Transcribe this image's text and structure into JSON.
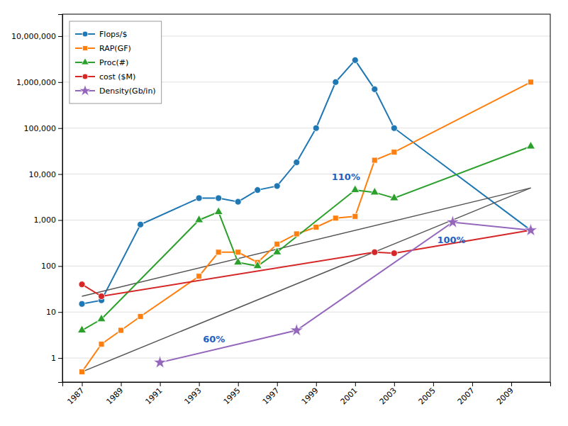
{
  "chart_data": {
    "type": "line",
    "log": "y",
    "grid": "y",
    "legend": "upper left",
    "xlim": [
      1986.0,
      2011.0
    ],
    "ylim": [
      0.3,
      30000000
    ],
    "xticks": [
      1987,
      1989,
      1991,
      1993,
      1995,
      1997,
      1999,
      2001,
      2003,
      2005,
      2007,
      2009
    ],
    "yticks": [
      1,
      10,
      100,
      {
        "value": 1000,
        "label": "1,000"
      },
      {
        "value": 10000,
        "label": "10,000"
      },
      {
        "value": 100000,
        "label": "100,000"
      },
      {
        "value": 1000000,
        "label": "1,000,000"
      },
      {
        "value": 10000000,
        "label": "10,000,000"
      }
    ],
    "series": [
      {
        "name": "Flops/$",
        "marker": "circle",
        "line_style": "solid",
        "x": [
          1987,
          1988,
          1990,
          1993,
          1994,
          1995,
          1996,
          1997,
          1998,
          1999,
          2000,
          2001,
          2002,
          2003,
          2010
        ],
        "values": [
          15,
          18,
          800,
          3000,
          3000,
          2500,
          4500,
          5500,
          18000,
          100000,
          1000000,
          3000000,
          700000,
          100000,
          600
        ]
      },
      {
        "line_style": "solid",
        "x": [
          1987,
          2010
        ],
        "values": [
          0.5,
          5000
        ]
      },
      {
        "line_style": "solid",
        "x": [
          1987,
          2010
        ],
        "values": [
          22,
          5000
        ]
      },
      {
        "name": "RAP(GF)",
        "marker": "square",
        "line_style": "solid",
        "x": [
          1987,
          1988,
          1989,
          1990,
          1993,
          1994,
          1995,
          1996,
          1997,
          1998,
          1999,
          2000,
          2001,
          2002,
          2003,
          2010
        ],
        "values": [
          0.5,
          2,
          4,
          8,
          60,
          200,
          200,
          120,
          300,
          500,
          700,
          1100,
          1200,
          20000,
          30000,
          1000000
        ]
      },
      {
        "name": "Proc(#)",
        "marker": "triangle",
        "line_style": "solid",
        "x": [
          1987,
          1988,
          1993,
          1994,
          1995,
          1996,
          1997,
          2001,
          2002,
          2003,
          2010
        ],
        "values": [
          4,
          7,
          1000,
          1500,
          120,
          100,
          200,
          4500,
          4000,
          3000,
          40000
        ]
      },
      {
        "name": "cost ($M)",
        "marker": "circle",
        "line_style": "solid",
        "x": [
          1987,
          1988,
          2002,
          2003,
          2010
        ],
        "values": [
          40,
          22,
          200,
          190,
          600
        ]
      },
      {
        "name": "Density(Gb/in)",
        "marker": "star",
        "line_style": "solid",
        "x": [
          1991,
          1998,
          2006,
          2010
        ],
        "values": [
          0.8,
          4,
          900,
          600
        ]
      }
    ],
    "annotations": [
      {
        "text": "60%",
        "x": 1993.2,
        "y": 2.2
      },
      {
        "text": "100%",
        "x": 2005.2,
        "y": 310
      },
      {
        "text": "110%",
        "x": 1999.8,
        "y": 7500
      }
    ]
  }
}
